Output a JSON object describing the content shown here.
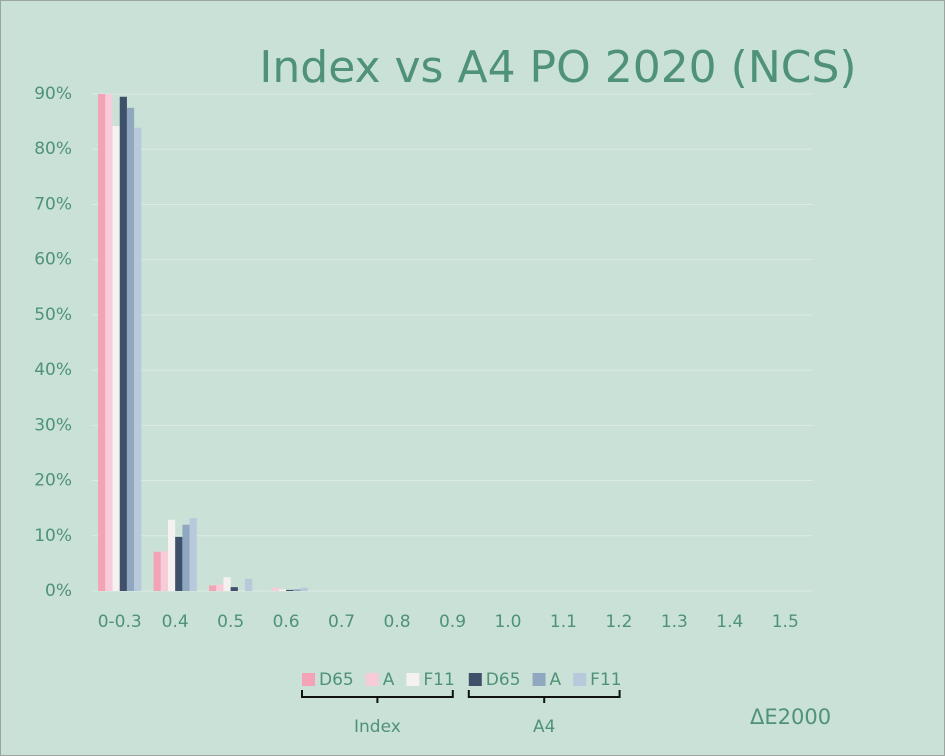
{
  "chart_data": {
    "type": "bar",
    "title": "Index vs A4 PO 2020 (NCS)",
    "x_label": "ΔE2000",
    "categories": [
      "0-0.3",
      "0.4",
      "0.5",
      "0.6",
      "0.7",
      "0.8",
      "0.9",
      "1.0",
      "1.1",
      "1.2",
      "1.3",
      "1.4",
      "1.5"
    ],
    "ylim": [
      0,
      90
    ],
    "yticks": [
      {
        "value": 0,
        "label": "0%"
      },
      {
        "value": 10,
        "label": "10%"
      },
      {
        "value": 20,
        "label": "20%"
      },
      {
        "value": 30,
        "label": "30%"
      },
      {
        "value": 40,
        "label": "40%"
      },
      {
        "value": 50,
        "label": "50%"
      },
      {
        "value": 60,
        "label": "60%"
      },
      {
        "value": 70,
        "label": "70%"
      },
      {
        "value": 80,
        "label": "80%"
      },
      {
        "value": 90,
        "label": "90%"
      }
    ],
    "grid": true,
    "series_groups": [
      {
        "name": "Index",
        "series": [
          {
            "name": "D65",
            "color": "#f4a2b6",
            "values": [
              90,
              7.1,
              1,
              0,
              0,
              0,
              0,
              0,
              0,
              0,
              0,
              0,
              0
            ]
          },
          {
            "name": "A",
            "color": "#f7cbd8",
            "values": [
              90,
              7.2,
              1.2,
              0.6,
              0,
              0,
              0,
              0,
              0,
              0,
              0,
              0,
              0
            ]
          },
          {
            "name": "F11",
            "color": "#f6f1f1",
            "values": [
              84.2,
              12.9,
              2.5,
              0.3,
              0,
              0,
              0,
              0,
              0,
              0,
              0,
              0,
              0
            ]
          }
        ]
      },
      {
        "name": "A4",
        "series": [
          {
            "name": "D65",
            "color": "#3e506a",
            "values": [
              89.5,
              9.8,
              0.7,
              0.2,
              0,
              0,
              0,
              0,
              0,
              0,
              0,
              0,
              0
            ]
          },
          {
            "name": "A",
            "color": "#8fa8c0",
            "values": [
              87.5,
              12,
              0,
              0.3,
              0,
              0,
              0,
              0,
              0,
              0,
              0,
              0,
              0
            ]
          },
          {
            "name": "F11",
            "color": "#b7c9da",
            "values": [
              83.9,
              13.2,
              2.2,
              0.6,
              0,
              0,
              0,
              0,
              0,
              0,
              0,
              0,
              0
            ]
          }
        ]
      }
    ]
  }
}
